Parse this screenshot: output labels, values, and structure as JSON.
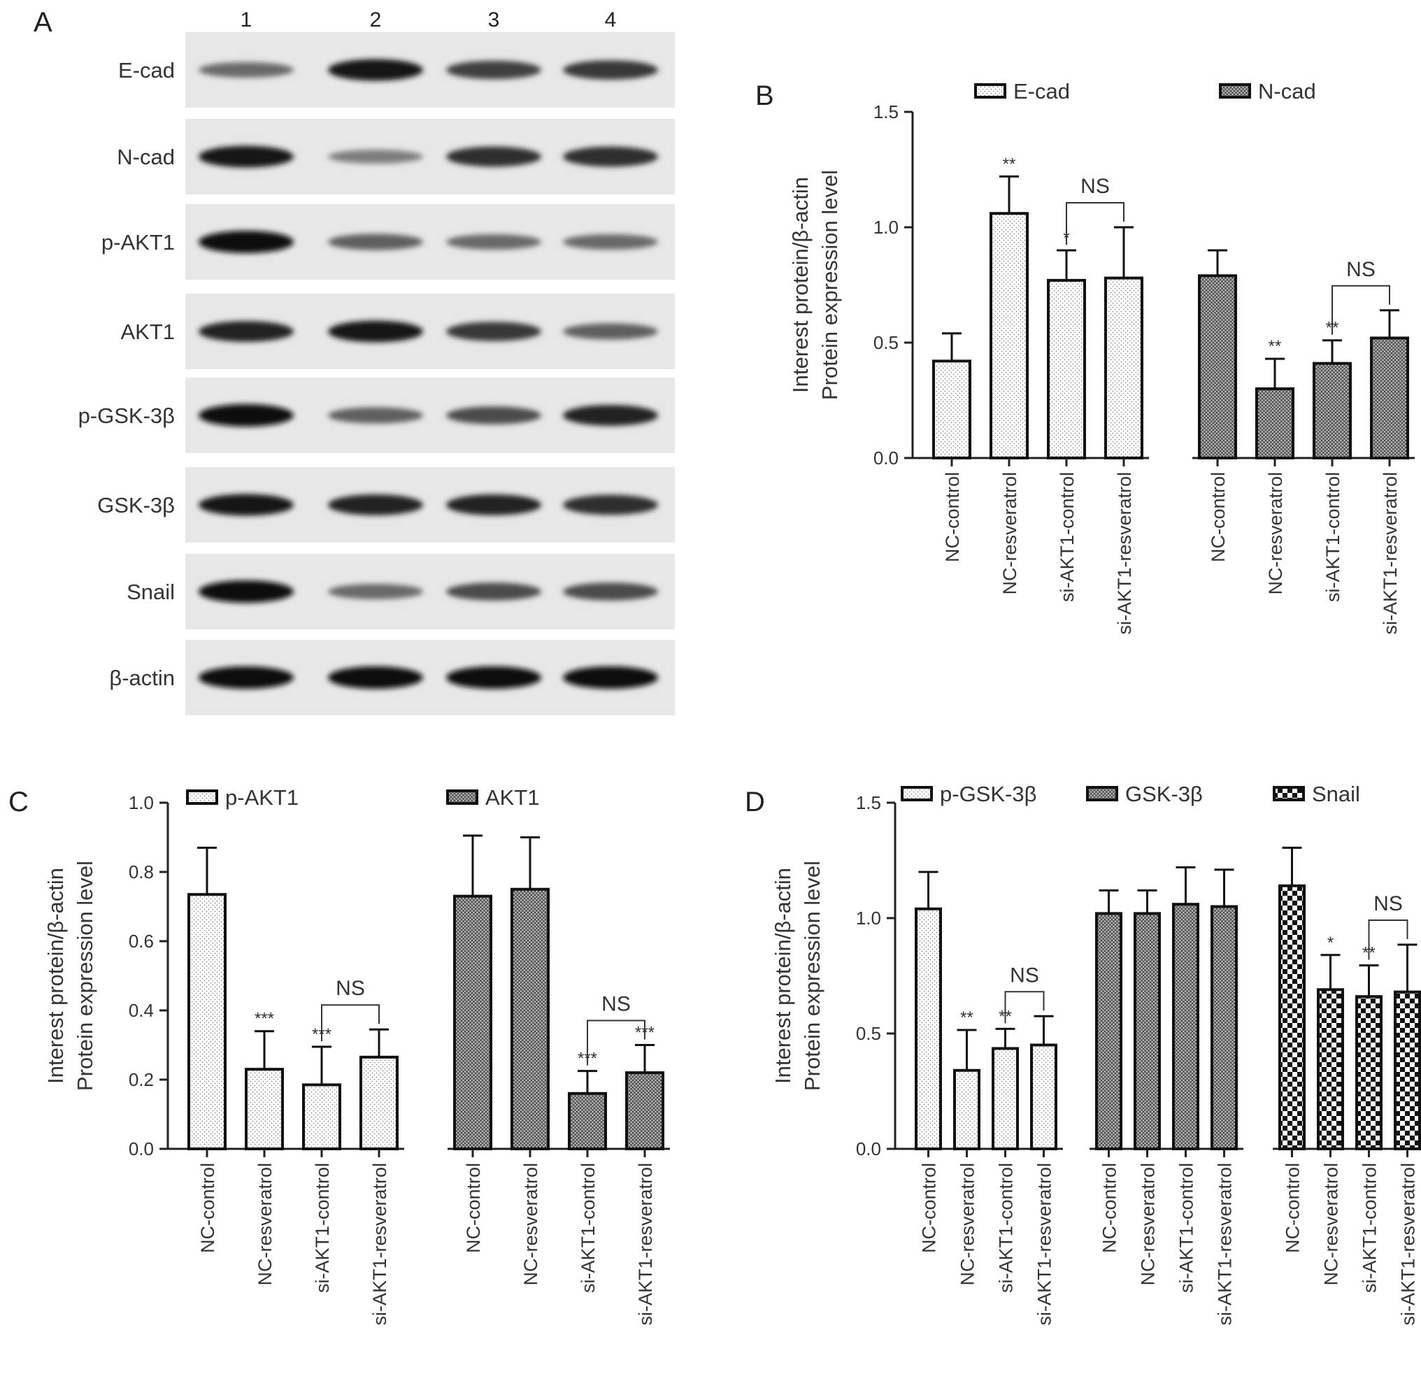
{
  "panel_letters": {
    "a": "A",
    "b": "B",
    "c": "C",
    "d": "D"
  },
  "blot": {
    "lanes": [
      "1",
      "2",
      "3",
      "4"
    ],
    "rows": [
      {
        "label": "E-cad",
        "intensity": [
          0.55,
          0.95,
          0.75,
          0.8
        ]
      },
      {
        "label": "N-cad",
        "intensity": [
          0.95,
          0.45,
          0.85,
          0.85
        ]
      },
      {
        "label": "p-AKT1",
        "intensity": [
          1.0,
          0.6,
          0.55,
          0.55
        ]
      },
      {
        "label": "AKT1",
        "intensity": [
          0.9,
          0.95,
          0.8,
          0.6
        ]
      },
      {
        "label": "p-GSK-3β",
        "intensity": [
          1.0,
          0.6,
          0.7,
          0.9
        ]
      },
      {
        "label": "GSK-3β",
        "intensity": [
          0.95,
          0.9,
          0.9,
          0.85
        ]
      },
      {
        "label": "Snail",
        "intensity": [
          1.0,
          0.55,
          0.7,
          0.7
        ]
      },
      {
        "label": "β-actin",
        "intensity": [
          1.0,
          1.0,
          1.0,
          1.0
        ]
      }
    ]
  },
  "chart_data": [
    {
      "panel": "B",
      "type": "bar",
      "ylabel_lines": [
        "Interest protein/β-actin",
        "Protein expression level"
      ],
      "ylim": [
        0,
        1.5
      ],
      "yticks": [
        "0.0",
        "0.5",
        "1.0",
        "1.5"
      ],
      "grid": false,
      "legend_position": "top",
      "categories": [
        "NC-control",
        "NC-resveratrol",
        "si-AKT1-control",
        "si-AKT1-resveratrol"
      ],
      "series": [
        {
          "name": "E-cad",
          "pattern": "dots",
          "values": [
            0.42,
            1.06,
            0.77,
            0.78
          ],
          "errors": [
            0.12,
            0.16,
            0.13,
            0.22
          ],
          "marks": [
            "",
            "**",
            "*",
            ""
          ],
          "ns_bracket": [
            "NS",
            2,
            3
          ]
        },
        {
          "name": "N-cad",
          "pattern": "cross",
          "values": [
            0.79,
            0.3,
            0.41,
            0.52
          ],
          "errors": [
            0.11,
            0.13,
            0.1,
            0.12
          ],
          "marks": [
            "",
            "**",
            "**",
            ""
          ],
          "ns_bracket": [
            "NS",
            2,
            3
          ]
        }
      ]
    },
    {
      "panel": "C",
      "type": "bar",
      "ylabel_lines": [
        "Interest protein/β-actin",
        "Protein expression level"
      ],
      "ylim": [
        0,
        1.0
      ],
      "yticks": [
        "0.0",
        "0.2",
        "0.4",
        "0.6",
        "0.8",
        "1.0"
      ],
      "grid": false,
      "legend_position": "top",
      "categories": [
        "NC-control",
        "NC-resveratrol",
        "si-AKT1-control",
        "si-AKT1-resveratrol"
      ],
      "series": [
        {
          "name": "p-AKT1",
          "pattern": "dots",
          "values": [
            0.735,
            0.23,
            0.185,
            0.265
          ],
          "errors": [
            0.135,
            0.11,
            0.11,
            0.08
          ],
          "marks": [
            "",
            "***",
            "***",
            ""
          ],
          "ns_bracket": [
            "NS",
            2,
            3
          ]
        },
        {
          "name": "AKT1",
          "pattern": "cross",
          "values": [
            0.73,
            0.75,
            0.16,
            0.22
          ],
          "errors": [
            0.175,
            0.15,
            0.065,
            0.08
          ],
          "marks": [
            "",
            "",
            "***",
            "***"
          ],
          "ns_bracket": [
            "NS",
            2,
            3
          ]
        }
      ]
    },
    {
      "panel": "D",
      "type": "bar",
      "ylabel_lines": [
        "Interest protein/β-actin",
        "Protein expression level"
      ],
      "ylim": [
        0,
        1.5
      ],
      "yticks": [
        "0.0",
        "0.5",
        "1.0",
        "1.5"
      ],
      "grid": false,
      "legend_position": "top",
      "categories": [
        "NC-control",
        "NC-resveratrol",
        "si-AKT1-control",
        "si-AKT1-resveratrol"
      ],
      "series": [
        {
          "name": "p-GSK-3β",
          "pattern": "dots",
          "values": [
            1.04,
            0.34,
            0.435,
            0.45
          ],
          "errors": [
            0.16,
            0.175,
            0.085,
            0.125
          ],
          "marks": [
            "",
            "**",
            "**",
            ""
          ],
          "ns_bracket": [
            "NS",
            2,
            3
          ]
        },
        {
          "name": "GSK-3β",
          "pattern": "cross",
          "values": [
            1.02,
            1.02,
            1.06,
            1.05
          ],
          "errors": [
            0.1,
            0.1,
            0.16,
            0.16
          ],
          "marks": [
            "",
            "",
            "",
            ""
          ],
          "ns_bracket": null
        },
        {
          "name": "Snail",
          "pattern": "checker",
          "values": [
            1.14,
            0.69,
            0.66,
            0.68
          ],
          "errors": [
            0.165,
            0.15,
            0.135,
            0.205
          ],
          "marks": [
            "",
            "*",
            "**",
            ""
          ],
          "ns_bracket": [
            "NS",
            2,
            3
          ]
        }
      ]
    }
  ]
}
